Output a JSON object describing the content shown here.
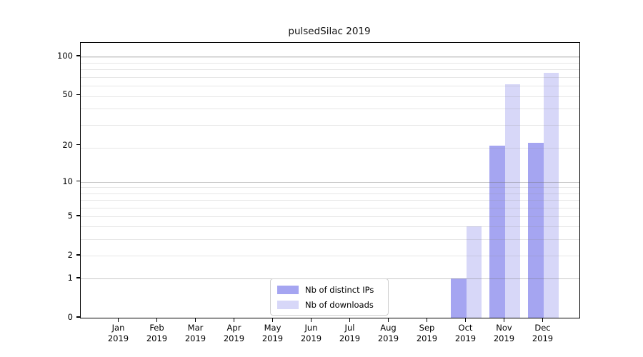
{
  "title": "pulsedSilac 2019",
  "chart_data": {
    "type": "bar",
    "title": "pulsedSilac 2019",
    "categories": [
      "Jan",
      "Feb",
      "Mar",
      "Apr",
      "May",
      "Jun",
      "Jul",
      "Aug",
      "Sep",
      "Oct",
      "Nov",
      "Dec"
    ],
    "year": "2019",
    "series": [
      {
        "name": "Nb of distinct IPs",
        "color": "#a5a5f1",
        "values": [
          0,
          0,
          0,
          0,
          0,
          0,
          0,
          0,
          0,
          1,
          20,
          21
        ]
      },
      {
        "name": "Nb of downloads",
        "color": "#d7d7f8",
        "values": [
          0,
          0,
          0,
          0,
          0,
          0,
          0,
          0,
          0,
          4,
          61,
          75
        ]
      }
    ],
    "xlabel": "",
    "ylabel": "",
    "yscale": "log(1+y)",
    "yticks": [
      0,
      1,
      2,
      5,
      10,
      20,
      50,
      100
    ],
    "ylim": [
      0,
      127
    ],
    "grid": "horizontal major and minor gridlines",
    "legend_position": "lower center",
    "background": "#ffffff",
    "spine_color": "#000000"
  }
}
